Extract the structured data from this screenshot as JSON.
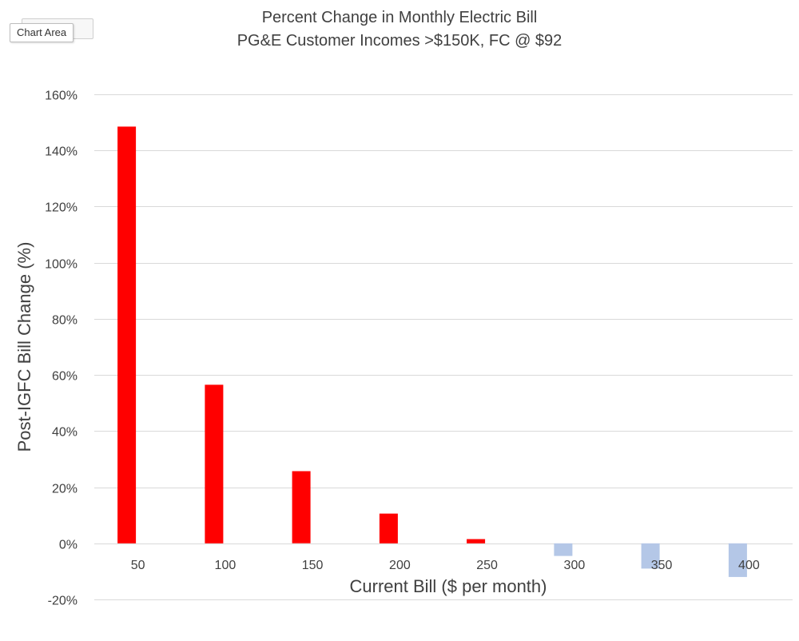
{
  "tooltip": {
    "label": "Chart Area"
  },
  "chart_data": {
    "type": "bar",
    "title": "Percent Change in Monthly Electric Bill",
    "subtitle": "PG&E Customer Incomes >$150K, FC @ $92",
    "xlabel": "Current Bill ($ per month)",
    "ylabel": "Post-IGFC Bill Change (%)",
    "categories": [
      "50",
      "100",
      "150",
      "200",
      "250",
      "300",
      "350",
      "400"
    ],
    "values": [
      148.5,
      56.5,
      25.7,
      10.6,
      1.5,
      -4.5,
      -9.0,
      -12.0
    ],
    "ylim": [
      -20,
      160
    ],
    "yticks": [
      -20,
      0,
      20,
      40,
      60,
      80,
      100,
      120,
      140,
      160
    ],
    "ytick_labels": [
      "-20%",
      "0%",
      "20%",
      "40%",
      "60%",
      "80%",
      "100%",
      "120%",
      "140%",
      "160%"
    ],
    "grid": true,
    "colors": {
      "positive": "#ff0000",
      "negative": "#b4c7e7",
      "grid": "#d9d9d9",
      "text": "#404040"
    }
  }
}
